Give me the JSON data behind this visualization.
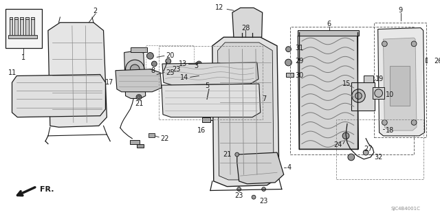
{
  "background_color": "#ffffff",
  "diagram_code": "SJC4B4001C",
  "line_color": "#1a1a1a",
  "light_gray": "#d8d8d8",
  "mid_gray": "#b0b0b0",
  "dark_gray": "#888888",
  "dashed_color": "#777777",
  "label_fontsize": 7.0,
  "small_fontsize": 5.5
}
